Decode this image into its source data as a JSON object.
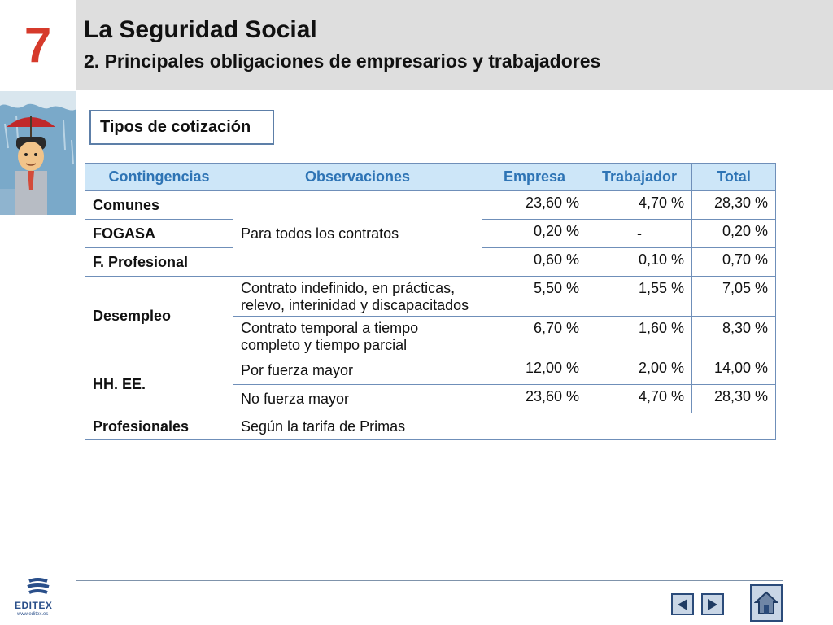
{
  "header": {
    "unit_number": "7",
    "title": "La Seguridad Social",
    "subtitle": "2. Principales obligaciones de empresarios y trabajadores"
  },
  "section": {
    "label": "Tipos de cotización"
  },
  "table": {
    "headers": [
      "Contingencias",
      "Observaciones",
      "Empresa",
      "Trabajador",
      "Total"
    ],
    "rows": [
      {
        "contingencia": "Comunes",
        "observacion": "Para todos los contratos",
        "empresa": "23,60 %",
        "trabajador": "4,70 %",
        "total": "28,30 %"
      },
      {
        "contingencia": "FOGASA",
        "empresa": "0,20 %",
        "trabajador": "-",
        "total": "0,20 %"
      },
      {
        "contingencia": "F. Profesional",
        "empresa": "0,60 %",
        "trabajador": "0,10 %",
        "total": "0,70 %"
      },
      {
        "contingencia": "Desempleo",
        "observacion": "Contrato indefinido, en prácticas, relevo, interinidad y discapacitados",
        "empresa": "5,50 %",
        "trabajador": "1,55 %",
        "total": "7,05 %"
      },
      {
        "observacion": "Contrato temporal a tiempo completo y tiempo parcial",
        "empresa": "6,70 %",
        "trabajador": "1,60 %",
        "total": "8,30 %"
      },
      {
        "contingencia": "HH. EE.",
        "observacion": "Por fuerza mayor",
        "empresa": "12,00 %",
        "trabajador": "2,00 %",
        "total": "14,00 %"
      },
      {
        "observacion": "No fuerza mayor",
        "empresa": "23,60 %",
        "trabajador": "4,70 %",
        "total": "28,30 %"
      },
      {
        "contingencia": "Profesionales",
        "observacion": "Según la tarifa de Primas"
      }
    ]
  },
  "footer": {
    "brand": "EDITEX",
    "url": "www.editex.es"
  },
  "colors": {
    "unit_number": "#d63a2b",
    "header_bg": "#dedede",
    "table_header_bg": "#cde6f8",
    "table_header_text": "#2e74b5",
    "border": "#6f8fb9"
  },
  "icons": {
    "prev": "triangle-left-icon",
    "next": "triangle-right-icon",
    "home": "house-icon"
  }
}
